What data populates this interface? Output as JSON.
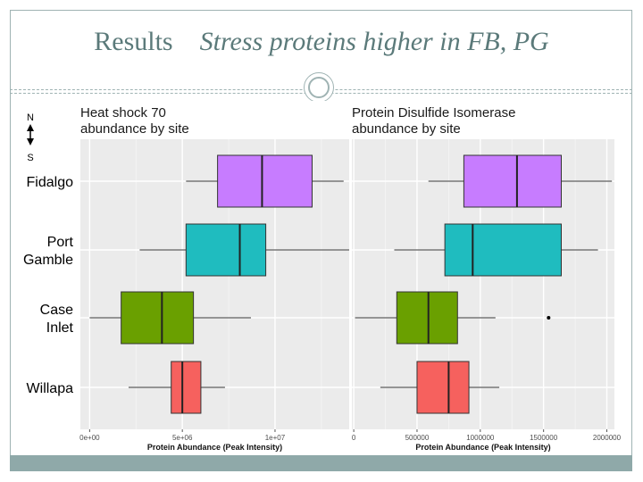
{
  "slide": {
    "title": "Results",
    "subtitle": "Stress proteins higher in FB, PG"
  },
  "compass": {
    "north": "N",
    "south": "S"
  },
  "sites": [
    {
      "lines": [
        "Fidalgo"
      ]
    },
    {
      "lines": [
        "Port",
        "Gamble"
      ]
    },
    {
      "lines": [
        "Case",
        "Inlet"
      ]
    },
    {
      "lines": [
        "Willapa"
      ]
    }
  ],
  "chart_data": [
    {
      "type": "boxplot",
      "title": "Heat shock 70\nabundance by site",
      "xlabel": "Protein Abundance (Peak Intensity)",
      "ylabel": "",
      "xlim": [
        -500000,
        14000000
      ],
      "xticks": [
        0,
        5000000,
        10000000
      ],
      "xtick_labels": [
        "0e+00",
        "5e+06",
        "1e+07"
      ],
      "grid": true,
      "categories": [
        "Fidalgo",
        "Port Gamble",
        "Case Inlet",
        "Willapa"
      ],
      "boxes": [
        {
          "site": "Fidalgo",
          "color": "#c77cff",
          "whisker_low": 5200000,
          "q1": 6900000,
          "median": 9300000,
          "q3": 12000000,
          "whisker_high": 13700000,
          "outliers": []
        },
        {
          "site": "Port Gamble",
          "color": "#1fbcbf",
          "whisker_low": 2700000,
          "q1": 5200000,
          "median": 8100000,
          "q3": 9500000,
          "whisker_high": 14000000,
          "outliers": []
        },
        {
          "site": "Case Inlet",
          "color": "#6aa000",
          "whisker_low": 0,
          "q1": 1700000,
          "median": 3900000,
          "q3": 5600000,
          "whisker_high": 8700000,
          "outliers": []
        },
        {
          "site": "Willapa",
          "color": "#f6615e",
          "whisker_low": 2100000,
          "q1": 4400000,
          "median": 5000000,
          "q3": 6000000,
          "whisker_high": 7300000,
          "outliers": []
        }
      ]
    },
    {
      "type": "boxplot",
      "title": "Protein Disulfide Isomerase\nabundance by site",
      "xlabel": "Protein Abundance (Peak Intensity)",
      "ylabel": "",
      "xlim": [
        -15000,
        2060000
      ],
      "xticks": [
        0,
        500000,
        1000000,
        1500000,
        2000000
      ],
      "xtick_labels": [
        "0",
        "500000",
        "1000000",
        "1500000",
        "2000000"
      ],
      "grid": true,
      "categories": [
        "Fidalgo",
        "Port Gamble",
        "Case Inlet",
        "Willapa"
      ],
      "boxes": [
        {
          "site": "Fidalgo",
          "color": "#c77cff",
          "whisker_low": 590000,
          "q1": 870000,
          "median": 1290000,
          "q3": 1640000,
          "whisker_high": 2040000,
          "outliers": []
        },
        {
          "site": "Port Gamble",
          "color": "#1fbcbf",
          "whisker_low": 320000,
          "q1": 720000,
          "median": 940000,
          "q3": 1640000,
          "whisker_high": 1930000,
          "outliers": []
        },
        {
          "site": "Case Inlet",
          "color": "#6aa000",
          "whisker_low": 10000,
          "q1": 340000,
          "median": 590000,
          "q3": 820000,
          "whisker_high": 1120000,
          "outliers": [
            1540000
          ]
        },
        {
          "site": "Willapa",
          "color": "#f6615e",
          "whisker_low": 210000,
          "q1": 500000,
          "median": 750000,
          "q3": 910000,
          "whisker_high": 1150000,
          "outliers": []
        }
      ]
    }
  ]
}
